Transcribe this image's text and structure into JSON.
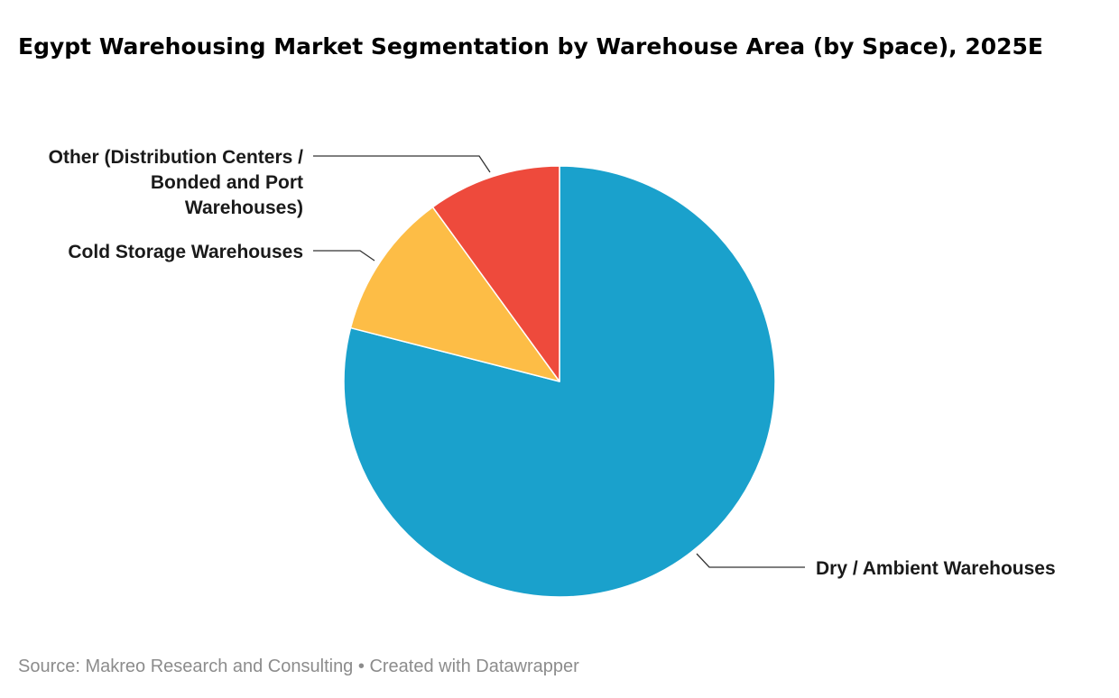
{
  "title": "Egypt Warehousing Market Segmentation by Warehouse Area (by Space), 2025E",
  "footer": {
    "source": "Source: Makreo Research and Consulting",
    "separator": "•",
    "created_with": "Created with Datawrapper"
  },
  "chart_data": {
    "type": "pie",
    "title": "Egypt Warehousing Market Segmentation by Warehouse Area (by Space), 2025E",
    "unit": "%",
    "start_angle_deg": 0,
    "direction": "clockwise",
    "slices": [
      {
        "label": "Dry / Ambient Warehouses",
        "label_lines": [
          "Dry / Ambient Warehouses"
        ],
        "value": 79,
        "color": "#1aa1cc"
      },
      {
        "label": "Cold Storage Warehouses",
        "label_lines": [
          "Cold Storage Warehouses"
        ],
        "value": 11,
        "color": "#fdbd46"
      },
      {
        "label": "Other (Distribution Centers / Bonded and Port Warehouses)",
        "label_lines": [
          "Other (Distribution Centers /",
          "Bonded and Port",
          "Warehouses)"
        ],
        "value": 10,
        "color": "#ee4a3c"
      }
    ]
  }
}
